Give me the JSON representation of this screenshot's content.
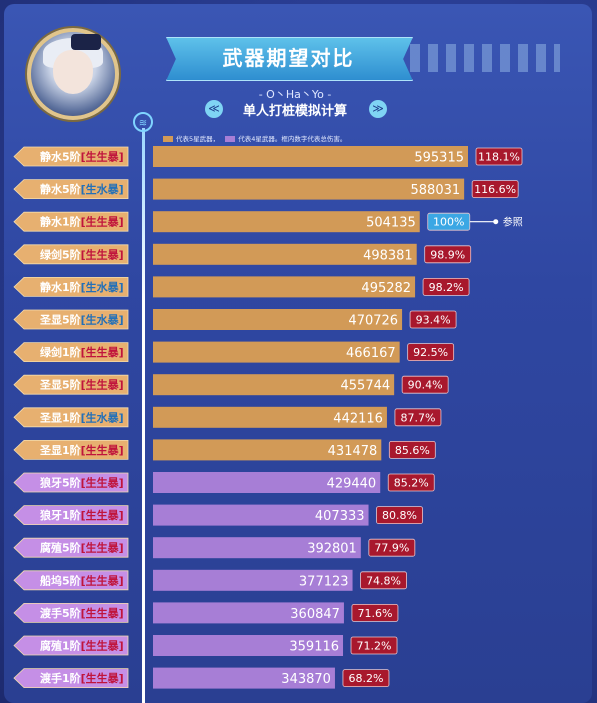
{
  "header": {
    "title": "武器期望对比",
    "credit": "- O丶Ha丶Yo -",
    "subtitle": "单人打桩模拟计算"
  },
  "legend": {
    "five_star": "代表5星武器，",
    "four_star": "代表4星武器。框内数字代表总伤害。"
  },
  "reference_label": "参照",
  "colors": {
    "five_star_bar": "#d29a57",
    "four_star_bar": "#a77ed6",
    "label_tag": "#e7b070",
    "pct_box": "#a8182d",
    "ref_box": "#3ba7e4",
    "tag_crit": "#c0143c",
    "tag_hydro": "#2370b8"
  },
  "chart_data": {
    "type": "bar",
    "orientation": "horizontal",
    "title": "武器期望对比",
    "reference": "静水1阶",
    "bars": [
      {
        "weapon": "静水5阶",
        "tag": "[生生暴]",
        "value": 595315,
        "percent": "118.1%",
        "tier": "5"
      },
      {
        "weapon": "静水5阶",
        "tag": "[生水暴]",
        "value": 588031,
        "percent": "116.6%",
        "tier": "5"
      },
      {
        "weapon": "静水1阶",
        "tag": "[生生暴]",
        "value": 504135,
        "percent": "100%",
        "tier": "5"
      },
      {
        "weapon": "绿剑5阶",
        "tag": "[生生暴]",
        "value": 498381,
        "percent": "98.9%",
        "tier": "5"
      },
      {
        "weapon": "静水1阶",
        "tag": "[生水暴]",
        "value": 495282,
        "percent": "98.2%",
        "tier": "5"
      },
      {
        "weapon": "圣显5阶",
        "tag": "[生水暴]",
        "value": 470726,
        "percent": "93.4%",
        "tier": "5"
      },
      {
        "weapon": "绿剑1阶",
        "tag": "[生生暴]",
        "value": 466167,
        "percent": "92.5%",
        "tier": "5"
      },
      {
        "weapon": "圣显5阶",
        "tag": "[生生暴]",
        "value": 455744,
        "percent": "90.4%",
        "tier": "5"
      },
      {
        "weapon": "圣显1阶",
        "tag": "[生水暴]",
        "value": 442116,
        "percent": "87.7%",
        "tier": "5"
      },
      {
        "weapon": "圣显1阶",
        "tag": "[生生暴]",
        "value": 431478,
        "percent": "85.6%",
        "tier": "5"
      },
      {
        "weapon": "狼牙5阶",
        "tag": "[生生暴]",
        "value": 429440,
        "percent": "85.2%",
        "tier": "4"
      },
      {
        "weapon": "狼牙1阶",
        "tag": "[生生暴]",
        "value": 407333,
        "percent": "80.8%",
        "tier": "4"
      },
      {
        "weapon": "腐殖5阶",
        "tag": "[生生暴]",
        "value": 392801,
        "percent": "77.9%",
        "tier": "4"
      },
      {
        "weapon": "船坞5阶",
        "tag": "[生生暴]",
        "value": 377123,
        "percent": "74.8%",
        "tier": "4"
      },
      {
        "weapon": "渡手5阶",
        "tag": "[生生暴]",
        "value": 360847,
        "percent": "71.6%",
        "tier": "4"
      },
      {
        "weapon": "腐殖1阶",
        "tag": "[生生暴]",
        "value": 359116,
        "percent": "71.2%",
        "tier": "4"
      },
      {
        "weapon": "渡手1阶",
        "tag": "[生生暴]",
        "value": 343870,
        "percent": "68.2%",
        "tier": "4"
      }
    ]
  }
}
